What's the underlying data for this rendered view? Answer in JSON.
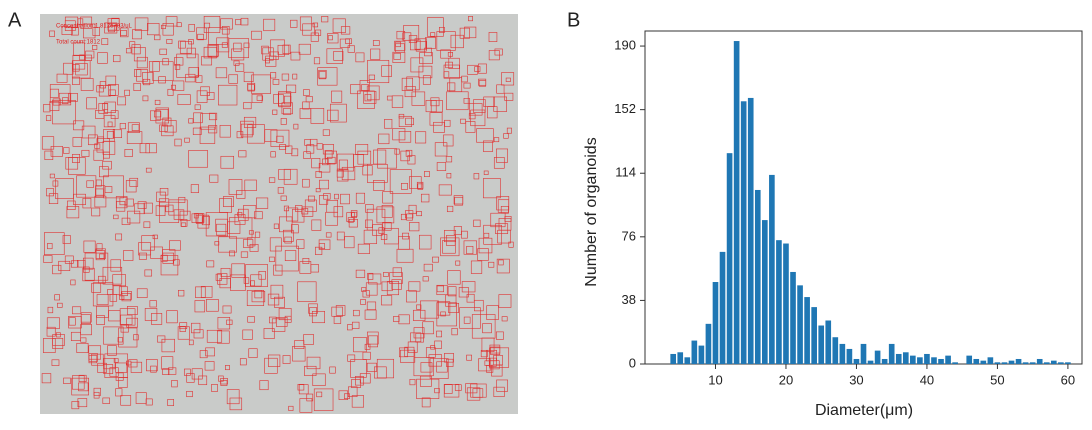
{
  "panel_a": {
    "label": "A",
    "annotations": [
      "Concentration:1.812e+03/uL",
      "Total count:1812"
    ]
  },
  "chart_data": {
    "type": "histogram",
    "label": "B",
    "x_label": "Diameter(μm)",
    "y_label": "Number of organoids",
    "bins": [
      3.5,
      4.5,
      5.5,
      6.5,
      7.5,
      8.5,
      9.5,
      10.5,
      11.5,
      12.5,
      13.5,
      14.5,
      15.5,
      16.5,
      17.5,
      18.5,
      19.5,
      20.5,
      21.5,
      22.5,
      23.5,
      24.5,
      25.5,
      26.5,
      27.5,
      28.5,
      29.5,
      30.5,
      31.5,
      32.5,
      33.5,
      34.5,
      35.5,
      36.5,
      37.5,
      38.5,
      39.5,
      40.5,
      41.5,
      42.5,
      43.5,
      44.5,
      45.5,
      46.5,
      47.5,
      48.5,
      49.5,
      50.5,
      51.5,
      52.5,
      53.5,
      54.5,
      55.5,
      56.5,
      57.5,
      58.5,
      59.5,
      60.5
    ],
    "values": [
      6,
      7,
      4,
      14,
      11,
      24,
      49,
      67,
      126,
      193,
      157,
      159,
      104,
      86,
      113,
      74,
      72,
      55,
      47,
      40,
      34,
      23,
      26,
      16,
      12,
      9,
      3,
      12,
      2,
      8,
      3,
      12,
      6,
      7,
      5,
      4,
      6,
      4,
      3,
      5,
      1,
      0,
      5,
      3,
      2,
      4,
      1,
      1,
      2,
      3,
      1,
      1,
      3,
      1,
      2,
      1,
      1
    ],
    "color": "#1f77b4",
    "xlim": [
      0,
      62
    ],
    "xticks": [
      10,
      20,
      30,
      40,
      50,
      60
    ],
    "ylim": [
      0,
      199
    ],
    "yticks": [
      0,
      38,
      76,
      114,
      152,
      190
    ]
  }
}
